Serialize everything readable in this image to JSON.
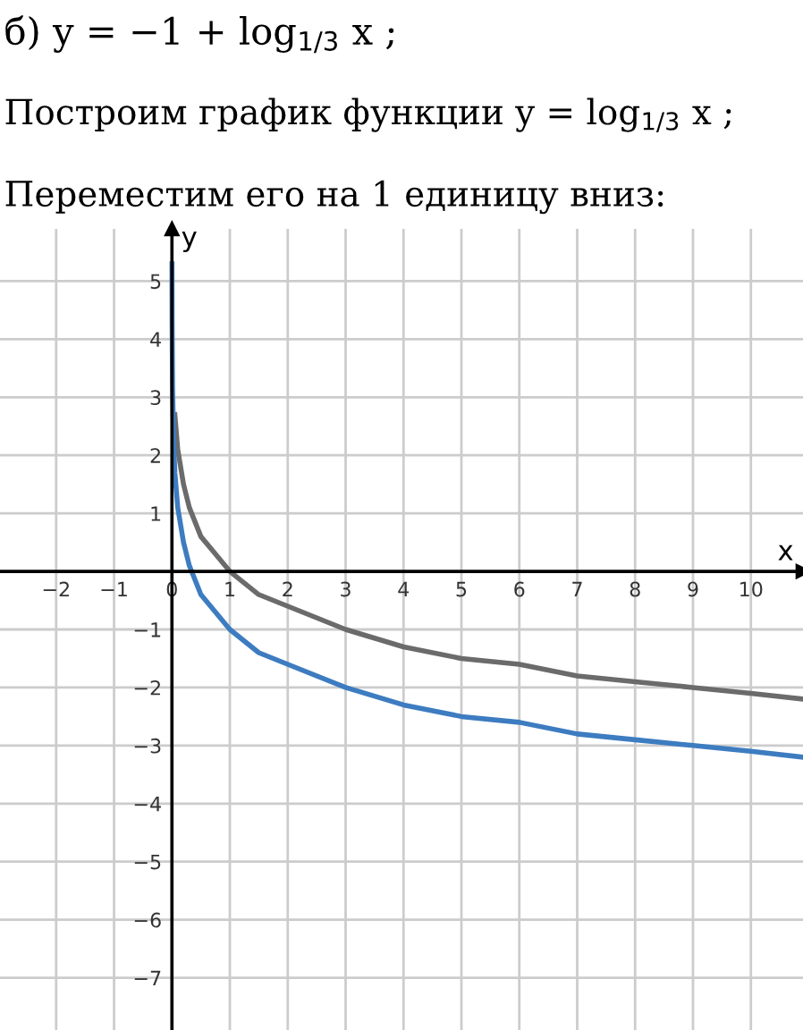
{
  "chart_data": {
    "type": "line",
    "title": "б) y = −1 + log$_{1/3}$ x ;",
    "subtitle": "Построим график функции y = log$_{1/3}$ x ;",
    "annotations": [
      "Переместим его на 1 единицу вниз:"
    ],
    "xlabel": "x",
    "ylabel": "y",
    "series": [
      {
        "color": "#6b6b6b",
        "x": [
          0.05,
          0.1,
          0.2,
          0.3,
          0.5,
          0.75,
          1,
          1.5,
          2,
          3,
          4,
          5,
          6,
          7,
          8,
          9,
          10,
          10.9
        ],
        "values": [
          2.7,
          2.1,
          1.5,
          1.1,
          0.6,
          0.3,
          0,
          -0.4,
          -0.6,
          -1,
          -1.3,
          -1.5,
          -1.6,
          -1.8,
          -1.9,
          -2,
          -2.1,
          -2.2
        ]
      },
      {
        "color": "#3d7cc0",
        "x": [
          0.001,
          0.003,
          0.01,
          0.03,
          0.05,
          0.1,
          0.2,
          0.3,
          0.5,
          0.75,
          1,
          1.5,
          2,
          3,
          4,
          5,
          6,
          7,
          8,
          9,
          10,
          10.9
        ],
        "values": [
          5.3,
          4.3,
          3.2,
          2.2,
          1.7,
          1.1,
          0.5,
          0.1,
          -0.4,
          -0.7,
          -1,
          -1.4,
          -1.6,
          -2,
          -2.3,
          -2.5,
          -2.6,
          -2.8,
          -2.9,
          -3,
          -3.1,
          -3.2
        ]
      }
    ],
    "xlim": [
      -2.97,
      10.9
    ],
    "ylim": [
      -7.9,
      5.9
    ],
    "xticks": [
      -2,
      -1,
      0,
      1,
      2,
      3,
      4,
      5,
      6,
      7,
      8,
      9,
      10
    ],
    "yticks": [
      -7,
      -6,
      -5,
      -4,
      -3,
      -2,
      -1,
      1,
      2,
      3,
      4,
      5
    ],
    "grid": true,
    "line_style": "solid"
  }
}
